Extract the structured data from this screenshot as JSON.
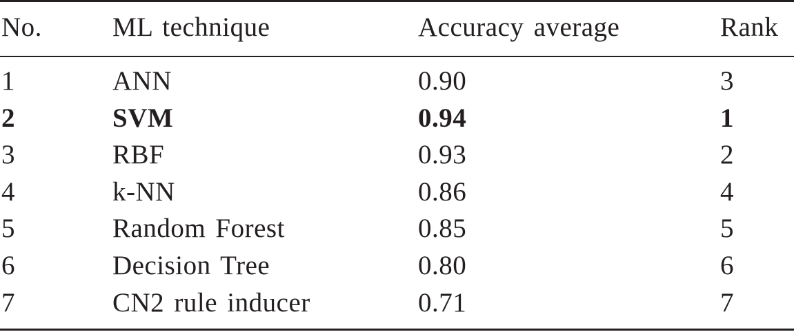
{
  "table": {
    "header": [
      "No.",
      "ML technique",
      "Accuracy average",
      "Rank"
    ],
    "rows": [
      [
        "1",
        "ANN",
        "0.90",
        "3"
      ],
      [
        "2",
        "SVM",
        "0.94",
        "1"
      ],
      [
        "3",
        "RBF",
        "0.93",
        "2"
      ],
      [
        "4",
        "k-NN",
        "0.86",
        "4"
      ],
      [
        "5",
        "Random Forest",
        "0.85",
        "5"
      ],
      [
        "6",
        "Decision Tree",
        "0.80",
        "6"
      ],
      [
        "7",
        "CN2 rule inducer",
        "0.71",
        "7"
      ]
    ]
  }
}
